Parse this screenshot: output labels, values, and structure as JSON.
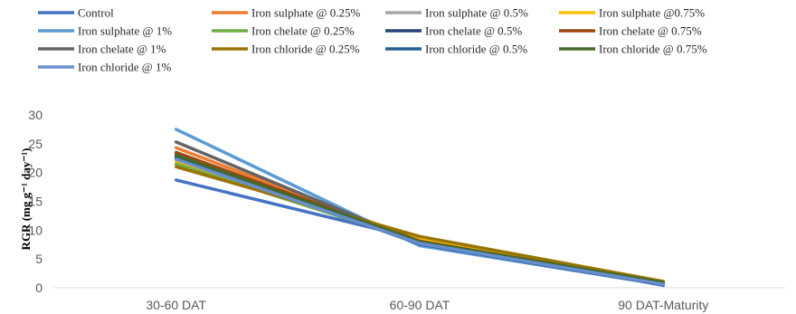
{
  "chart_data": {
    "type": "line",
    "categories": [
      "30-60 DAT",
      "60-90 DAT",
      "90 DAT-Maturity"
    ],
    "ylabel": "RGR (mg g⁻¹ day⁻¹)",
    "ylim": [
      0,
      30
    ],
    "y_ticks": [
      0,
      5,
      10,
      15,
      20,
      25,
      30
    ],
    "grid": false,
    "legend_position": "top",
    "series": [
      {
        "name": "Control",
        "color": "#4472C4",
        "values": [
          18.7,
          8.4,
          0.4
        ]
      },
      {
        "name": "Iron sulphate @ 0.25%",
        "color": "#ED7D31",
        "values": [
          24.3,
          8.2,
          0.8
        ]
      },
      {
        "name": "Iron sulphate @ 0.5%",
        "color": "#A5A5A5",
        "values": [
          23.2,
          7.8,
          0.6
        ]
      },
      {
        "name": "Iron sulphate @0.75%",
        "color": "#FFC000",
        "values": [
          22.0,
          8.5,
          0.9
        ]
      },
      {
        "name": "Iron sulphate @ 1%",
        "color": "#5B9BD5",
        "values": [
          27.5,
          7.3,
          0.5
        ]
      },
      {
        "name": "Iron chelate @ 0.25%",
        "color": "#70AD47",
        "values": [
          21.5,
          7.9,
          0.7
        ]
      },
      {
        "name": "Iron chelate @ 0.5%",
        "color": "#264478",
        "values": [
          22.8,
          8.0,
          0.6
        ]
      },
      {
        "name": "Iron chelate @ 0.75%",
        "color": "#9E480E",
        "values": [
          23.5,
          8.1,
          0.8
        ]
      },
      {
        "name": "Iron chelate @ 1%",
        "color": "#636363",
        "values": [
          25.3,
          7.8,
          0.7
        ]
      },
      {
        "name": "Iron chloride @ 0.25%",
        "color": "#997300",
        "values": [
          21.0,
          8.9,
          1.1
        ]
      },
      {
        "name": "Iron chloride @ 0.5%",
        "color": "#255E91",
        "values": [
          22.5,
          7.6,
          0.5
        ]
      },
      {
        "name": "Iron chloride @ 0.75%",
        "color": "#43682B",
        "values": [
          23.0,
          8.0,
          0.9
        ]
      },
      {
        "name": "Iron chloride @ 1%",
        "color": "#698ED0",
        "values": [
          22.3,
          7.7,
          0.6
        ]
      }
    ]
  }
}
